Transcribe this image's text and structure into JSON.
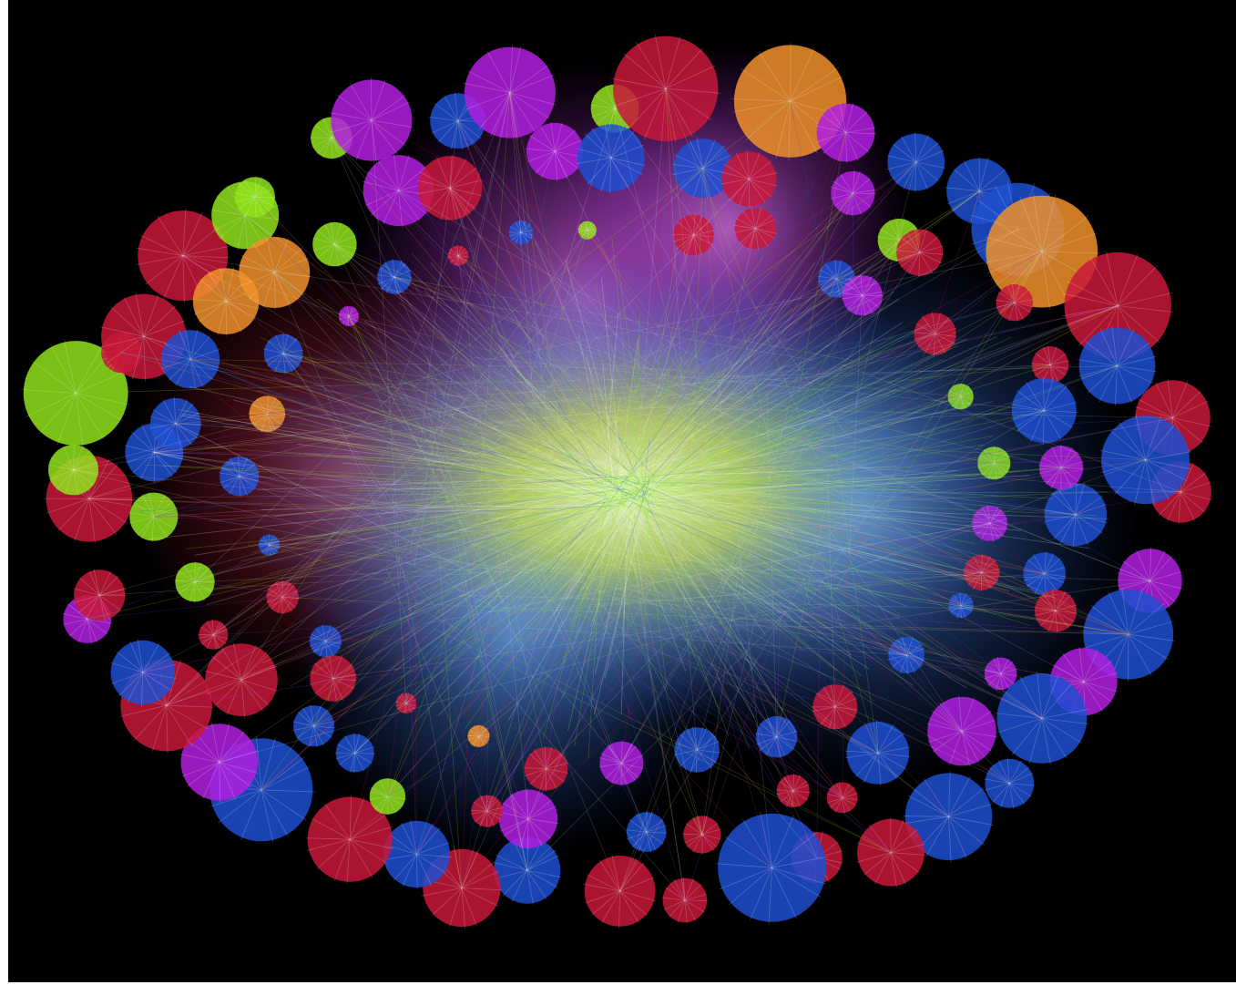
{
  "diagram": {
    "type": "network-graph",
    "background_color": "#000000",
    "frame_color": "#ffffff",
    "palette": {
      "red": "#c8173a",
      "blue": "#1f4fd1",
      "purple": "#b21fe0",
      "green": "#8fe21a",
      "orange": "#f0902a",
      "core_glow": "#e8ffb0",
      "edge": "#ffffff"
    }
  }
}
